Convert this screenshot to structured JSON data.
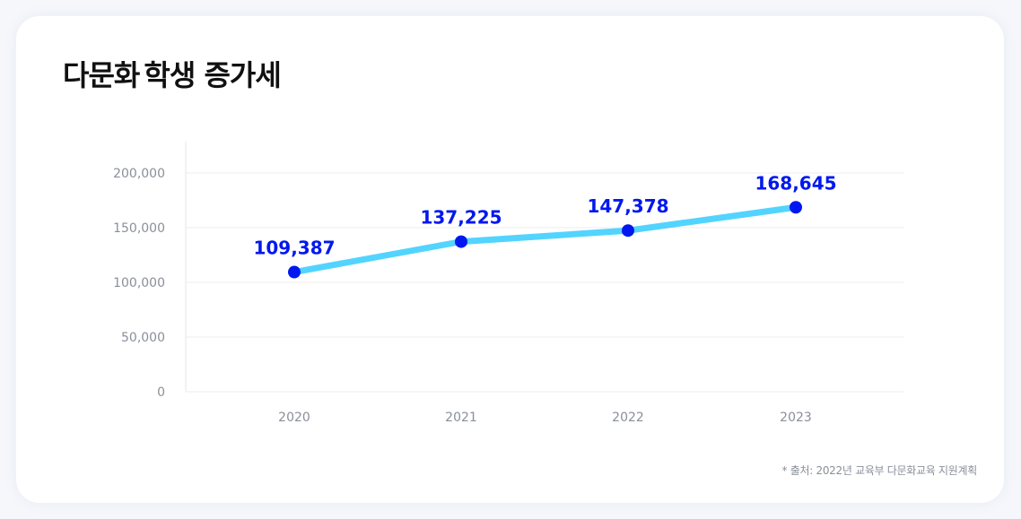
{
  "title": {
    "prefix": "다문화",
    "highlight": "학생 증가세"
  },
  "source_note": "* 출처: 2022년 교육부 다문화교육 지원계획",
  "colors": {
    "line": "#52d4ff",
    "marker": "#0017f0",
    "label": "#0017f0",
    "highlight": "#4fd5ff",
    "grid": "#ededed",
    "tick": "#8a8f99"
  },
  "chart_data": {
    "type": "line",
    "categories": [
      "2020",
      "2021",
      "2022",
      "2023"
    ],
    "series": [
      {
        "values": [
          109387,
          137225,
          147378,
          168645
        ],
        "data_labels": [
          "109,387",
          "137,225",
          "147,378",
          "168,645"
        ]
      }
    ],
    "y_ticks": [
      0,
      50000,
      100000,
      150000,
      200000
    ],
    "y_tick_labels": [
      "0",
      "50,000",
      "100,000",
      "150,000",
      "200,000"
    ],
    "ylim": [
      0,
      200000
    ],
    "grid": true,
    "legend": "none"
  }
}
